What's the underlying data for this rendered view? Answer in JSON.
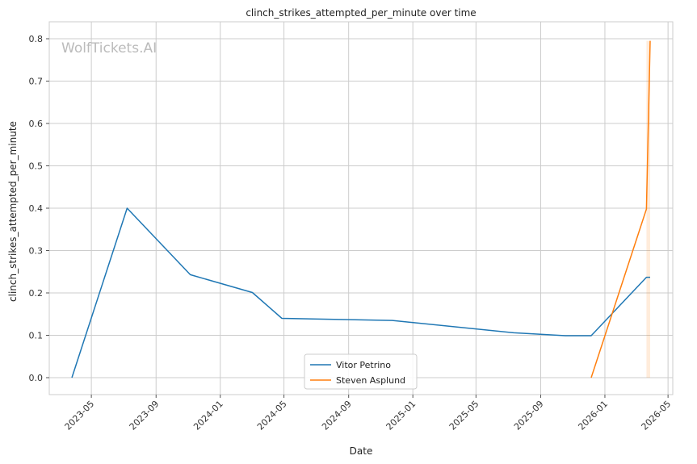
{
  "chart_data": {
    "type": "line",
    "title": "clinch_strikes_attempted_per_minute over time",
    "xlabel": "Date",
    "ylabel": "clinch_strikes_attempted_per_minute",
    "watermark": "WolfTickets.AI",
    "x_ticks": [
      "2023-05",
      "2023-09",
      "2024-01",
      "2024-05",
      "2024-09",
      "2025-01",
      "2025-05",
      "2025-09",
      "2026-01",
      "2026-05"
    ],
    "y_ticks": [
      "0.0",
      "0.1",
      "0.2",
      "0.3",
      "0.4",
      "0.5",
      "0.6",
      "0.7",
      "0.8"
    ],
    "xlim": [
      "2023-02-10",
      "2026-05-10"
    ],
    "ylim": [
      -0.04,
      0.84
    ],
    "grid": true,
    "legend_position": "lower-center",
    "series": [
      {
        "name": "Vitor Petrino",
        "color": "#1f77b4",
        "x": [
          "2023-03-25",
          "2023-07-08",
          "2023-11-05",
          "2024-03-02",
          "2024-04-27",
          "2024-11-23",
          "2025-07-12",
          "2025-10-18",
          "2025-12-06",
          "2026-03-21",
          "2026-03-28"
        ],
        "y": [
          0.0,
          0.4,
          0.243,
          0.201,
          0.14,
          0.135,
          0.106,
          0.099,
          0.099,
          0.237,
          0.237
        ]
      },
      {
        "name": "Steven Asplund",
        "color": "#ff7f0e",
        "x": [
          "2025-12-06",
          "2026-03-21",
          "2026-03-28"
        ],
        "y": [
          0.0,
          0.398,
          0.795
        ]
      }
    ]
  }
}
